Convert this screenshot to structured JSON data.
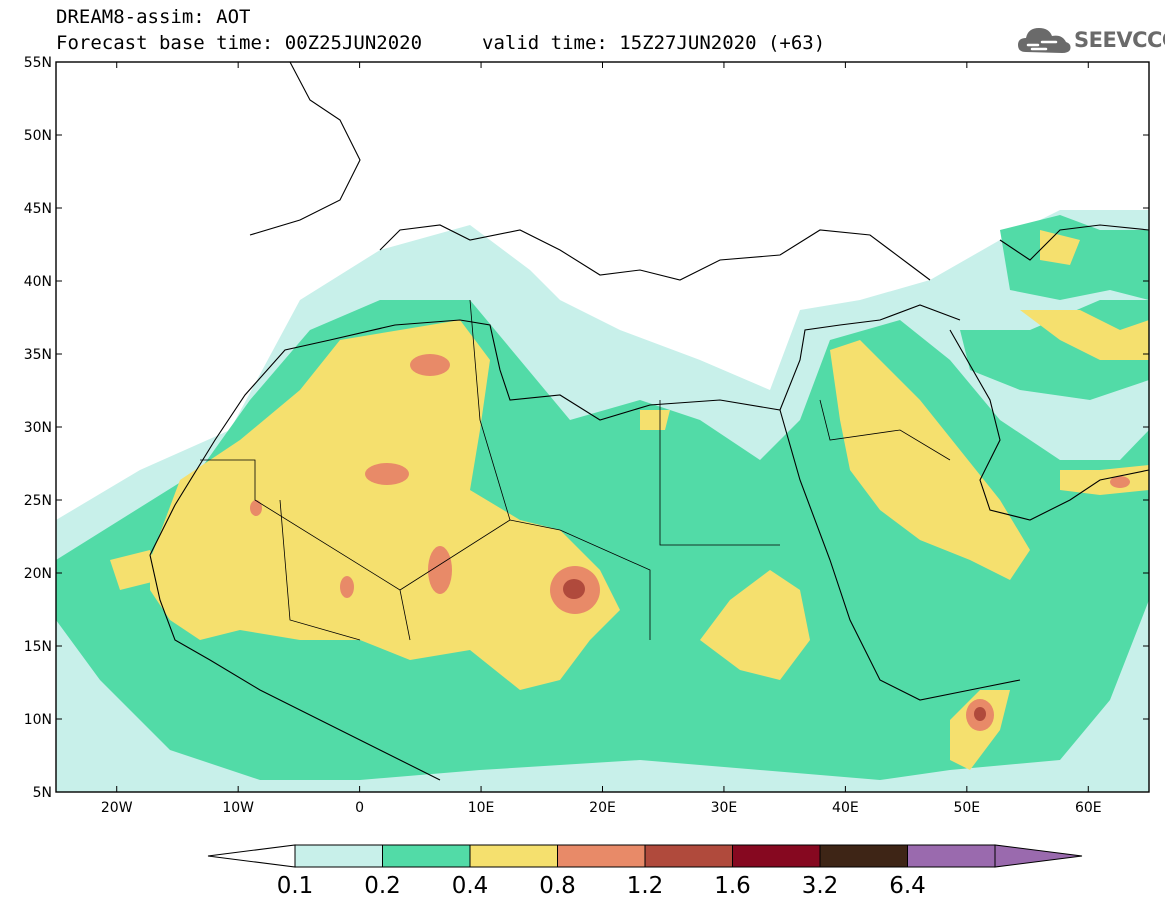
{
  "header": {
    "title": "DREAM8-assim: AOT",
    "base_time": "Forecast base time: 00Z25JUN2020",
    "valid_time": "valid time: 15Z27JUN2020 (+63)"
  },
  "logo": {
    "text": "SEEVCCC",
    "icon": "cloud-icon"
  },
  "map": {
    "lon_range": [
      -25,
      65
    ],
    "lat_range": [
      5,
      55
    ],
    "lat_labels": [
      "55N",
      "50N",
      "45N",
      "40N",
      "35N",
      "30N",
      "25N",
      "20N",
      "15N",
      "10N",
      "5N"
    ],
    "lon_labels": [
      "20W",
      "10W",
      "0",
      "10E",
      "20E",
      "30E",
      "40E",
      "50E",
      "60E"
    ]
  },
  "colorbar": {
    "labels": [
      "0.1",
      "0.2",
      "0.4",
      "0.8",
      "1.2",
      "1.6",
      "3.2",
      "6.4"
    ],
    "colors": [
      "#ffffff",
      "#c8f0ea",
      "#52dba7",
      "#f5e06e",
      "#e88a68",
      "#b04a3c",
      "#860820",
      "#3e2516",
      "#9a6aae"
    ]
  }
}
